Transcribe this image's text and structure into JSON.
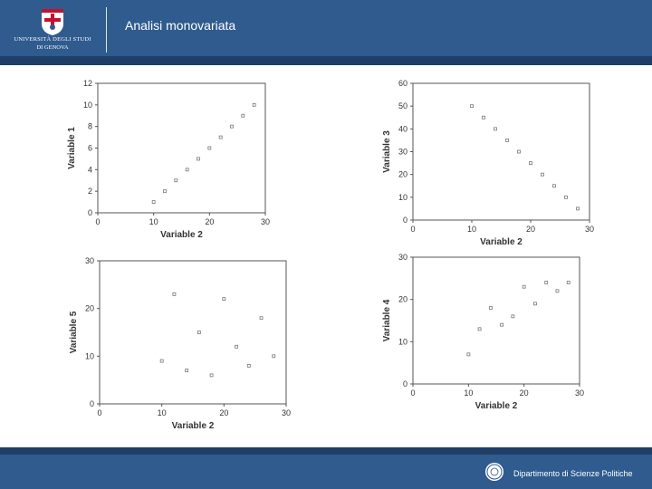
{
  "header": {
    "title": "Analisi monovariata",
    "logo_line1": "UNIVERSITÀ DEGLI STUDI",
    "logo_line2": "DI GENOVA"
  },
  "footer": {
    "department": "Dipartimento di Scienze Politiche"
  },
  "colors": {
    "header_blue": "#2f5b8f",
    "accent_dark": "#1f3f69",
    "point_stroke": "#777777"
  },
  "chart_data": [
    {
      "type": "scatter",
      "xlabel": "Variable 2",
      "ylabel": "Variable 1",
      "xlim": [
        0,
        30
      ],
      "ylim": [
        0,
        12
      ],
      "xticks": [
        0,
        10,
        20,
        30
      ],
      "yticks": [
        0,
        2,
        4,
        6,
        8,
        10,
        12
      ],
      "grid": false,
      "points": [
        {
          "x": 10,
          "y": 1
        },
        {
          "x": 12,
          "y": 2
        },
        {
          "x": 14,
          "y": 3
        },
        {
          "x": 16,
          "y": 4
        },
        {
          "x": 18,
          "y": 5
        },
        {
          "x": 20,
          "y": 6
        },
        {
          "x": 22,
          "y": 7
        },
        {
          "x": 24,
          "y": 8
        },
        {
          "x": 26,
          "y": 9
        },
        {
          "x": 28,
          "y": 10
        }
      ]
    },
    {
      "type": "scatter",
      "xlabel": "Variable 2",
      "ylabel": "Variable 3",
      "xlim": [
        0,
        30
      ],
      "ylim": [
        0,
        60
      ],
      "xticks": [
        0,
        10,
        20,
        30
      ],
      "yticks": [
        0,
        10,
        20,
        30,
        40,
        50,
        60
      ],
      "grid": false,
      "points": [
        {
          "x": 10,
          "y": 50
        },
        {
          "x": 12,
          "y": 45
        },
        {
          "x": 14,
          "y": 40
        },
        {
          "x": 16,
          "y": 35
        },
        {
          "x": 18,
          "y": 30
        },
        {
          "x": 20,
          "y": 25
        },
        {
          "x": 22,
          "y": 20
        },
        {
          "x": 24,
          "y": 15
        },
        {
          "x": 26,
          "y": 10
        },
        {
          "x": 28,
          "y": 5
        }
      ]
    },
    {
      "type": "scatter",
      "xlabel": "Variable 2",
      "ylabel": "Variable 5",
      "xlim": [
        0,
        30
      ],
      "ylim": [
        0,
        30
      ],
      "xticks": [
        0,
        10,
        20,
        30
      ],
      "yticks": [
        0,
        10,
        20,
        30
      ],
      "grid": false,
      "points": [
        {
          "x": 10,
          "y": 9
        },
        {
          "x": 12,
          "y": 23
        },
        {
          "x": 14,
          "y": 7
        },
        {
          "x": 16,
          "y": 15
        },
        {
          "x": 18,
          "y": 6
        },
        {
          "x": 20,
          "y": 22
        },
        {
          "x": 22,
          "y": 12
        },
        {
          "x": 24,
          "y": 8
        },
        {
          "x": 26,
          "y": 18
        },
        {
          "x": 28,
          "y": 10
        }
      ]
    },
    {
      "type": "scatter",
      "xlabel": "Variable 2",
      "ylabel": "Variable 4",
      "xlim": [
        0,
        30
      ],
      "ylim": [
        0,
        30
      ],
      "xticks": [
        0,
        10,
        20,
        30
      ],
      "yticks": [
        0,
        10,
        20,
        30
      ],
      "grid": false,
      "points": [
        {
          "x": 10,
          "y": 7
        },
        {
          "x": 12,
          "y": 13
        },
        {
          "x": 14,
          "y": 18
        },
        {
          "x": 16,
          "y": 14
        },
        {
          "x": 18,
          "y": 16
        },
        {
          "x": 20,
          "y": 23
        },
        {
          "x": 22,
          "y": 19
        },
        {
          "x": 24,
          "y": 24
        },
        {
          "x": 26,
          "y": 22
        },
        {
          "x": 28,
          "y": 24
        }
      ]
    }
  ]
}
